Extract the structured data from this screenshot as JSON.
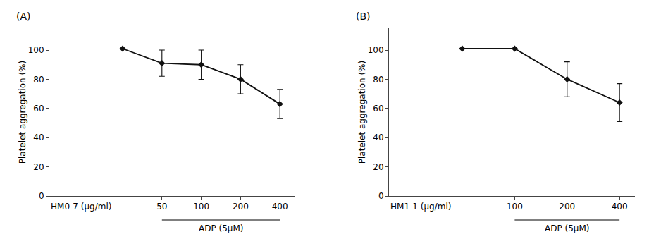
{
  "chart_data": [
    {
      "type": "line",
      "title": "(A)",
      "y_label": "Platelet aggregation (%)",
      "categories": [
        "-",
        "50",
        "100",
        "200",
        "400"
      ],
      "values": [
        101,
        91,
        90,
        80,
        63
      ],
      "errors": [
        0,
        9,
        10,
        10,
        10
      ],
      "color": "#111111",
      "marker": "diamond",
      "line_style": "solid",
      "ylim": [
        0,
        115
      ],
      "yticks": [
        0,
        20,
        40,
        60,
        80,
        100
      ],
      "grid": false,
      "annotations": [
        {
          "text": "HM0-7 (μg/ml)",
          "at": "-"
        },
        {
          "text": "ADP (5μM)",
          "from": "50",
          "to": "400"
        }
      ]
    },
    {
      "type": "line",
      "title": "(B)",
      "y_label": "Platelet aggregation (%)",
      "categories": [
        "-",
        "100",
        "200",
        "400"
      ],
      "values": [
        101,
        101,
        80,
        64
      ],
      "errors": [
        0,
        0,
        12,
        13
      ],
      "color": "#111111",
      "marker": "diamond",
      "line_style": "solid",
      "ylim": [
        0,
        115
      ],
      "yticks": [
        0,
        20,
        40,
        60,
        80,
        100
      ],
      "grid": false,
      "annotations": [
        {
          "text": "HM1-1 (μg/ml)",
          "at": "-"
        },
        {
          "text": "ADP (5μM)",
          "from": "100",
          "to": "400"
        }
      ]
    }
  ]
}
